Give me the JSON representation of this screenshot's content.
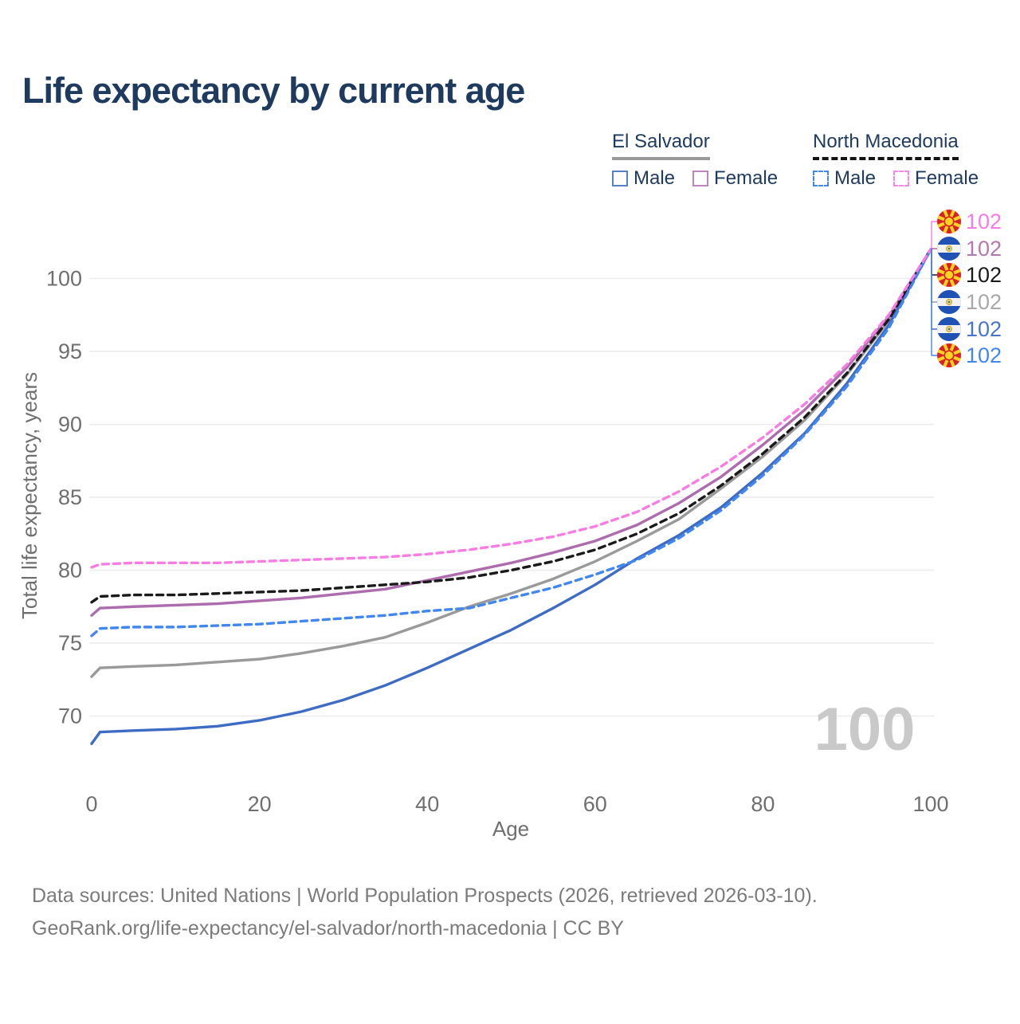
{
  "page": {
    "title": "Life expectancy by current age"
  },
  "legend": {
    "groups": [
      {
        "id": "el-salvador",
        "name": "El Salvador",
        "underline_color": "#9a9a9a",
        "underline_style": "solid",
        "items": [
          {
            "label": "Male",
            "color": "#5581c7",
            "style": "solid"
          },
          {
            "label": "Female",
            "color": "#c084be",
            "style": "solid"
          }
        ]
      },
      {
        "id": "north-macedonia",
        "name": "North Macedonia",
        "underline_color": "#141414",
        "underline_style": "dashed",
        "items": [
          {
            "label": "Male",
            "color": "#4287f0",
            "style": "dashed"
          },
          {
            "label": "Female",
            "color": "#fb87e7",
            "style": "dashed"
          }
        ]
      }
    ]
  },
  "chart_data": {
    "type": "line",
    "title": "Life expectancy by current age",
    "xlabel": "Age",
    "ylabel": "Total life expectancy, years",
    "x_ticks": [
      0,
      20,
      40,
      60,
      80,
      100
    ],
    "y_ticks": [
      70,
      75,
      80,
      85,
      90,
      95,
      100
    ],
    "xlim": [
      0,
      100
    ],
    "ylim": [
      68,
      103
    ],
    "grid": "horizontal-only",
    "legend_position": "top-right",
    "watermark_year": "100",
    "ages": [
      0,
      1,
      5,
      10,
      15,
      20,
      25,
      30,
      35,
      40,
      45,
      50,
      55,
      60,
      65,
      70,
      75,
      80,
      85,
      90,
      95,
      100
    ],
    "series": [
      {
        "id": "nm-female",
        "country": "North Macedonia",
        "sex": "Female",
        "style": "dashed",
        "color": "#f97ce4",
        "label_color": "#f97ce4",
        "flag": "mk",
        "end_label": "102",
        "values": [
          80.2,
          80.4,
          80.5,
          80.5,
          80.5,
          80.6,
          80.7,
          80.8,
          80.9,
          81.1,
          81.4,
          81.8,
          82.3,
          83.0,
          84.0,
          85.4,
          87.1,
          89.1,
          91.4,
          94.1,
          97.5,
          102
        ]
      },
      {
        "id": "sv-female",
        "country": "El Salvador",
        "sex": "Female",
        "style": "solid",
        "color": "#ad6cad",
        "label_color": "#b279ae",
        "flag": "sv",
        "end_label": "102",
        "values": [
          76.9,
          77.4,
          77.5,
          77.6,
          77.7,
          77.9,
          78.1,
          78.4,
          78.7,
          79.3,
          79.9,
          80.5,
          81.2,
          82.0,
          83.1,
          84.6,
          86.4,
          88.6,
          91.0,
          93.9,
          97.4,
          102
        ]
      },
      {
        "id": "nm-total",
        "country": "North Macedonia",
        "sex": "Total",
        "style": "dashed",
        "color": "#1a1a1a",
        "label_color": "#1a1a1a",
        "flag": "mk",
        "end_label": "102",
        "values": [
          77.8,
          78.2,
          78.3,
          78.3,
          78.4,
          78.5,
          78.6,
          78.8,
          79.0,
          79.2,
          79.5,
          80.0,
          80.6,
          81.4,
          82.5,
          83.9,
          85.8,
          88.0,
          90.5,
          93.5,
          97.2,
          102
        ]
      },
      {
        "id": "sv-total",
        "country": "El Salvador",
        "sex": "Total",
        "style": "solid",
        "color": "#9a9a9a",
        "label_color": "#a8a8a8",
        "flag": "sv",
        "end_label": "102",
        "values": [
          72.7,
          73.3,
          73.4,
          73.5,
          73.7,
          73.9,
          74.3,
          74.8,
          75.4,
          76.4,
          77.5,
          78.4,
          79.4,
          80.6,
          82.0,
          83.5,
          85.6,
          87.8,
          90.3,
          93.4,
          97.1,
          102
        ]
      },
      {
        "id": "sv-male",
        "country": "El Salvador",
        "sex": "Male",
        "style": "solid",
        "color": "#3e6bc4",
        "label_color": "#4a74c9",
        "flag": "sv",
        "end_label": "102",
        "values": [
          68.1,
          68.9,
          69.0,
          69.1,
          69.3,
          69.7,
          70.3,
          71.1,
          72.1,
          73.3,
          74.6,
          75.9,
          77.4,
          79.0,
          80.8,
          82.4,
          84.3,
          86.7,
          89.4,
          92.8,
          96.8,
          102
        ]
      },
      {
        "id": "nm-male",
        "country": "North Macedonia",
        "sex": "Male",
        "style": "dashed",
        "color": "#4287f0",
        "label_color": "#4287f0",
        "flag": "mk",
        "end_label": "102",
        "values": [
          75.5,
          76.0,
          76.1,
          76.1,
          76.2,
          76.3,
          76.5,
          76.7,
          76.9,
          77.2,
          77.4,
          78.1,
          78.8,
          79.7,
          80.7,
          82.2,
          84.1,
          86.5,
          89.3,
          92.6,
          96.6,
          102
        ]
      }
    ],
    "colors": {
      "grid": "#ebebeb",
      "tick_text": "#6f6f6f",
      "watermark": "#c9c9c9",
      "flag_mk_red": "#d82127",
      "flag_mk_yellow": "#ffd520",
      "flag_sv_blue": "#2051b5"
    }
  },
  "footer": {
    "line1": "Data sources: United Nations | World Population Prospects (2026, retrieved 2026-03-10).",
    "line2": "GeoRank.org/life-expectancy/el-salvador/north-macedonia | CC BY"
  }
}
